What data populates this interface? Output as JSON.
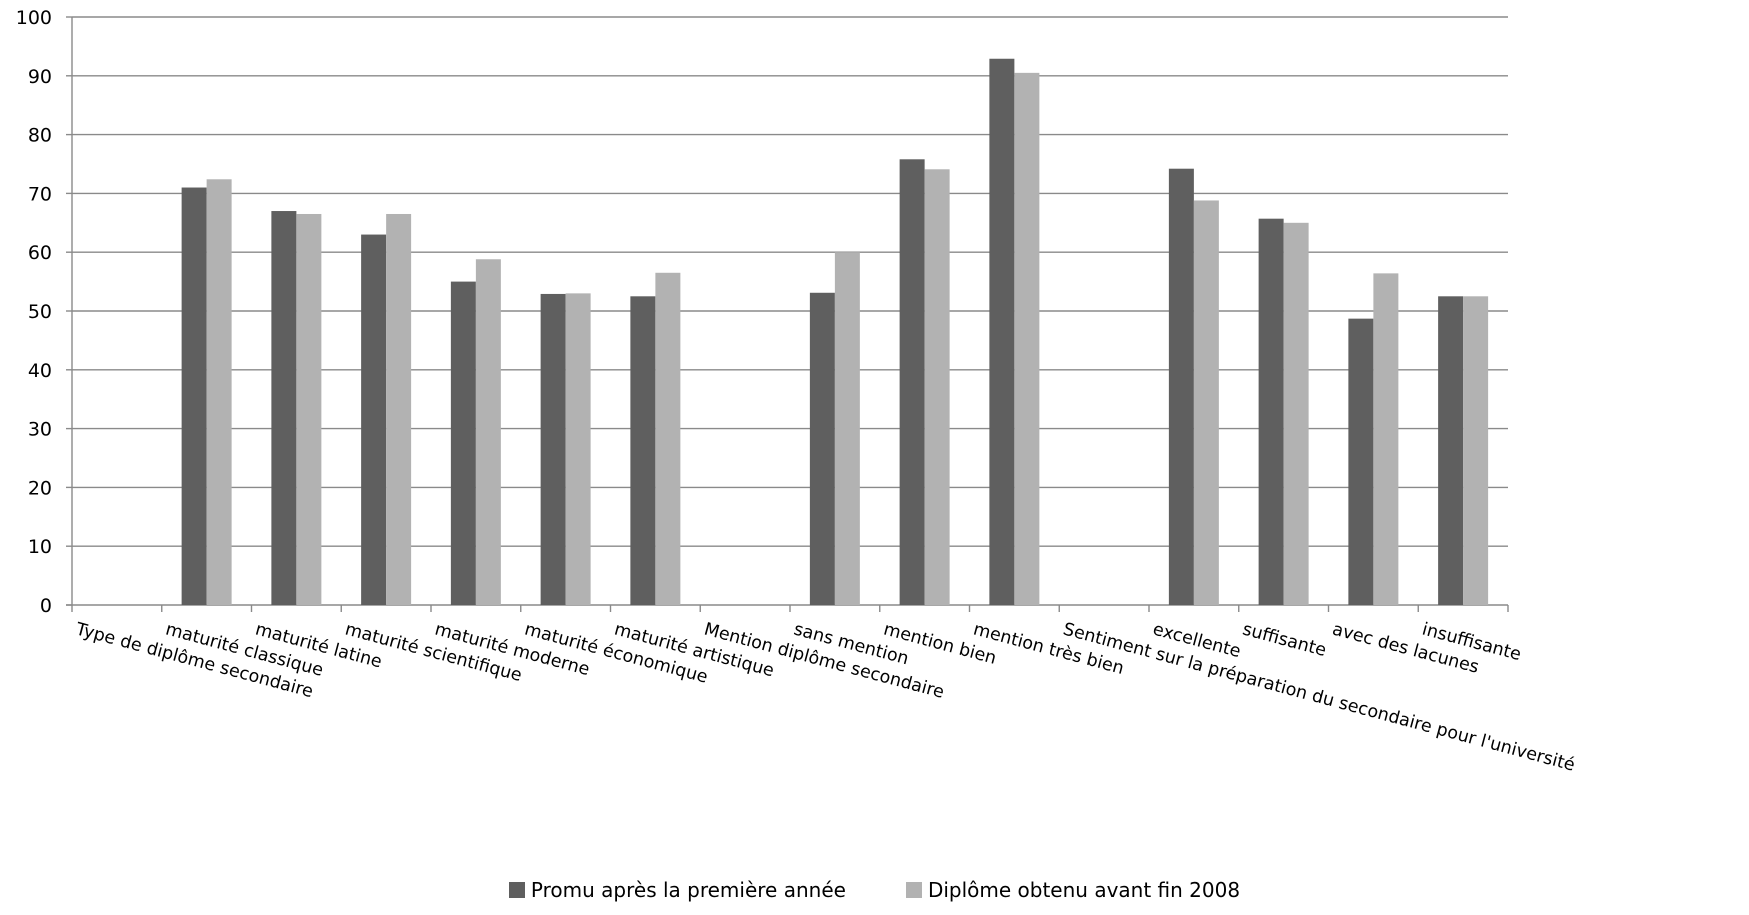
{
  "chart_data": {
    "type": "bar",
    "categories": [
      "Type de diplôme secondaire",
      "maturité classique",
      "maturité latine",
      "maturité scientifique",
      "maturité moderne",
      "maturité économique",
      "maturité artistique",
      "Mention diplôme secondaire",
      "sans mention",
      "mention bien",
      "mention très bien",
      "Sentiment sur la préparation du secondaire pour l'université",
      "excellente",
      "suffisante",
      "avec des lacunes",
      "insuffisante"
    ],
    "series": [
      {
        "name": "Promu après la première année",
        "color": "#5f5f5f",
        "values": [
          null,
          71,
          67,
          63,
          55,
          52.9,
          52.5,
          null,
          53.1,
          75.8,
          92.9,
          null,
          74.2,
          65.7,
          48.7,
          52.5
        ]
      },
      {
        "name": "Diplôme obtenu avant fin 2008",
        "color": "#b2b2b2",
        "values": [
          null,
          72.4,
          66.5,
          66.5,
          58.8,
          53,
          56.5,
          null,
          60,
          74.1,
          90.5,
          null,
          68.8,
          65,
          56.4,
          52.5
        ]
      }
    ],
    "ylim": [
      0,
      100
    ],
    "yticks": [
      0,
      10,
      20,
      30,
      40,
      50,
      60,
      70,
      80,
      90,
      100
    ],
    "grid": true,
    "legend_position": "bottom"
  }
}
